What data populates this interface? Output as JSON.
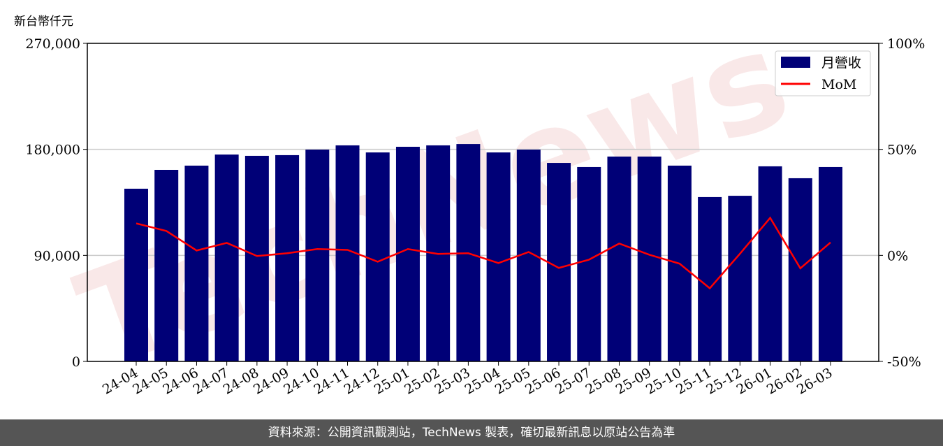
{
  "unit_label": "新台幣仟元",
  "watermark": "TechNews",
  "footer": "資料來源：公開資訊觀測站，TechNews 製表，確切最新訊息以原站公告為準",
  "chart_data": {
    "type": "bar+line",
    "categories": [
      "24-04",
      "24-05",
      "24-06",
      "24-07",
      "24-08",
      "24-09",
      "24-10",
      "24-11",
      "24-12",
      "25-01",
      "25-02",
      "25-03",
      "25-04",
      "25-05",
      "25-06",
      "25-07",
      "25-08",
      "25-09",
      "25-10",
      "25-11",
      "25-12",
      "26-01",
      "26-02",
      "26-03"
    ],
    "series": [
      {
        "name": "月營收",
        "type": "bar",
        "axis": "left",
        "color": "#000077",
        "values": [
          146600,
          162600,
          166200,
          175600,
          174500,
          175100,
          179800,
          183400,
          177400,
          182200,
          183400,
          184500,
          177400,
          179800,
          168500,
          165000,
          173900,
          173900,
          166200,
          139500,
          140600,
          165600,
          155500,
          165000
        ]
      },
      {
        "name": "MoM",
        "type": "line",
        "axis": "right",
        "color": "#ff0000",
        "values": [
          15.1,
          11.5,
          2.3,
          5.9,
          -0.3,
          1.0,
          3.0,
          2.6,
          -3.0,
          3.0,
          0.7,
          1.0,
          -3.6,
          1.6,
          -5.9,
          -2.0,
          5.6,
          0.3,
          -3.9,
          -15.5,
          0.8,
          17.7,
          -6.1,
          6.1
        ]
      }
    ],
    "left_axis": {
      "ylim": [
        0,
        270000
      ],
      "ticks": [
        "0",
        "90,000",
        "180,000",
        "270,000"
      ]
    },
    "right_axis": {
      "ylim": [
        -50,
        100
      ],
      "ticks": [
        "-50%",
        "0%",
        "50%",
        "100%"
      ]
    },
    "grid": "horizontal",
    "legend": "top-right"
  }
}
